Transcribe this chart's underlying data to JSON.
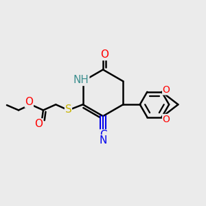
{
  "bg_color": "#ebebeb",
  "atom_colors": {
    "O": "#ff0000",
    "N": "#3d8f8f",
    "S": "#c8b400",
    "CN_color": "#0000ee",
    "black": "#000000"
  },
  "bond_lw": 1.8,
  "font_size": 11
}
